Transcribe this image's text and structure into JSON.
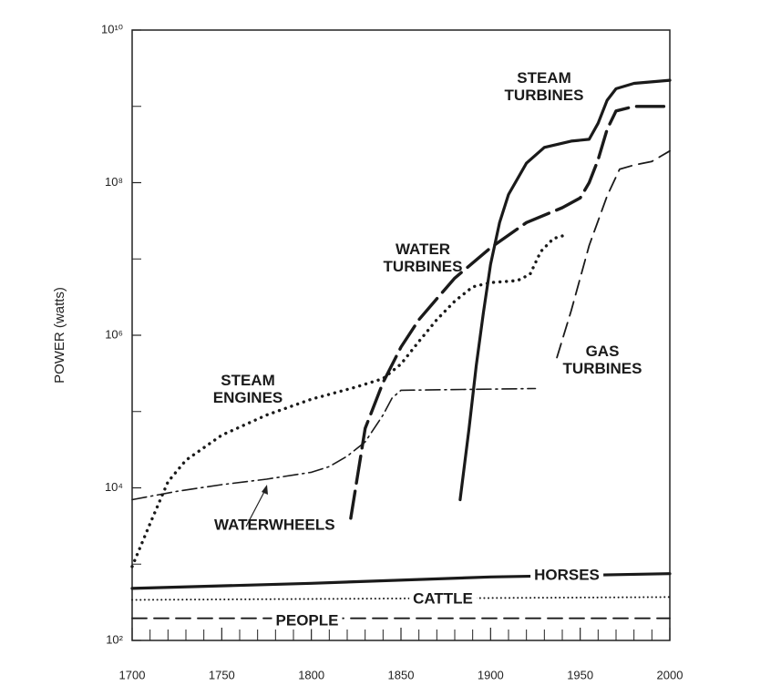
{
  "chart_data": {
    "type": "line",
    "y_label": "POWER (watts)",
    "yscale": "log",
    "xlim": [
      1700,
      2000
    ],
    "xticks": [
      1700,
      1750,
      1800,
      1850,
      1900,
      1950,
      2000
    ],
    "xminorticks": [
      1710,
      1720,
      1730,
      1740,
      1760,
      1770,
      1780,
      1790,
      1810,
      1820,
      1830,
      1840,
      1860,
      1870,
      1880,
      1890,
      1910,
      1920,
      1930,
      1940,
      1960,
      1970,
      1980,
      1990
    ],
    "ylim": [
      100,
      10000000000
    ],
    "yticks": [
      {
        "value": 100,
        "label": "10²"
      },
      {
        "value": 10000,
        "label": "10⁴"
      },
      {
        "value": 1000000,
        "label": "10⁶"
      },
      {
        "value": 100000000,
        "label": "10⁸"
      },
      {
        "value": 10000000000,
        "label": "10¹⁰"
      }
    ],
    "yminorticks": [
      1000,
      100000,
      10000000,
      1000000000
    ],
    "series": [
      {
        "name": "STEAM TURBINES",
        "color": "#1a1a1a",
        "style": "solid",
        "x": [
          1883,
          1888,
          1892,
          1896,
          1900,
          1905,
          1910,
          1920,
          1930,
          1945,
          1955,
          1960,
          1965,
          1970,
          1980,
          2000
        ],
        "values": [
          7000,
          60000,
          400000,
          2000000,
          8500000,
          30000000,
          70000000,
          180000000,
          290000000,
          350000000,
          370000000,
          600000000,
          1200000000,
          1700000000,
          2000000000,
          2200000000
        ]
      },
      {
        "name": "WATER TURBINES",
        "color": "#1a1a1a",
        "style": "longdash",
        "x": [
          1822,
          1830,
          1840,
          1850,
          1860,
          1870,
          1880,
          1900,
          1920,
          1940,
          1950,
          1955,
          1960,
          1965,
          1970,
          1980,
          2000
        ],
        "values": [
          4000,
          60000,
          240000,
          700000,
          1600000,
          3000000,
          5600000,
          14000000,
          30000000,
          47000000,
          63000000,
          100000000,
          200000000,
          500000000,
          870000000,
          1000000000,
          1000000000
        ]
      },
      {
        "name": "STEAM ENGINES",
        "color": "#1a1a1a",
        "style": "dotted",
        "x": [
          1700,
          1710,
          1720,
          1730,
          1750,
          1775,
          1800,
          1825,
          1840,
          1850,
          1860,
          1870,
          1880,
          1890,
          1900,
          1915,
          1922,
          1928,
          1935,
          1940
        ],
        "values": [
          930,
          3400,
          12000,
          23000,
          49000,
          90000,
          145000,
          210000,
          270000,
          420000,
          830000,
          1600000,
          2800000,
          4300000,
          4900000,
          5200000,
          6300000,
          12500000,
          18500000,
          20000000
        ]
      },
      {
        "name": "GAS TURBINES",
        "color": "#1a1a1a",
        "style": "dashed",
        "x": [
          1937,
          1945,
          1955,
          1965,
          1972,
          1980,
          1990,
          2000
        ],
        "values": [
          510000,
          2100000,
          15000000,
          67000000,
          150000000,
          170000000,
          190000000,
          260000000
        ]
      },
      {
        "name": "WATERWHEELS",
        "color": "#1a1a1a",
        "style": "dashdot",
        "x": [
          1700,
          1725,
          1750,
          1775,
          1800,
          1810,
          1820,
          1830,
          1840,
          1845,
          1850,
          1925
        ],
        "values": [
          7000,
          9000,
          11000,
          13000,
          16000,
          19000,
          26000,
          40000,
          90000,
          150000,
          190000,
          200000
        ]
      },
      {
        "name": "HORSES",
        "color": "#1a1a1a",
        "style": "solid",
        "x": [
          1700,
          1800,
          1900,
          1960,
          2000
        ],
        "values": [
          480,
          560,
          680,
          720,
          750
        ]
      },
      {
        "name": "CATTLE",
        "color": "#1a1a1a",
        "style": "finedot",
        "x": [
          1700,
          2000
        ],
        "values": [
          340,
          370
        ]
      },
      {
        "name": "PEOPLE",
        "color": "#1a1a1a",
        "style": "dashed",
        "x": [
          1700,
          2000
        ],
        "values": [
          195,
          195
        ]
      }
    ]
  }
}
